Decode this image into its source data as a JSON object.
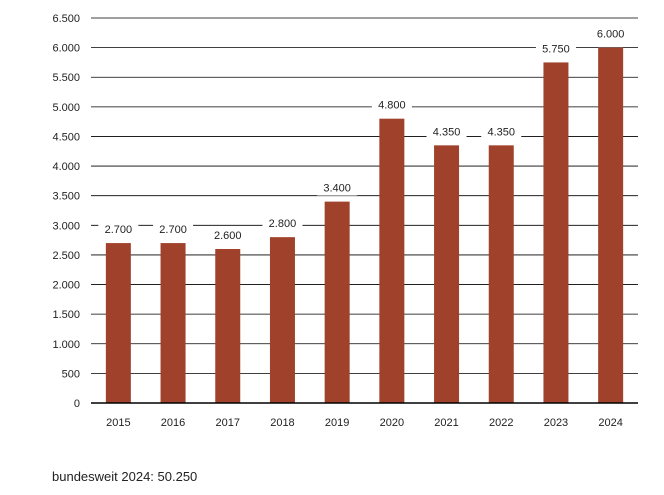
{
  "chart_data": {
    "type": "bar",
    "categories": [
      "2015",
      "2016",
      "2017",
      "2018",
      "2019",
      "2020",
      "2021",
      "2022",
      "2023",
      "2024"
    ],
    "values": [
      2700,
      2700,
      2600,
      2800,
      3400,
      4800,
      4350,
      4350,
      5750,
      6000
    ],
    "data_labels": [
      "2.700",
      "2.700",
      "2.600",
      "2.800",
      "3.400",
      "4.800",
      "4.350",
      "4.350",
      "5.750",
      "6.000"
    ],
    "y_ticks": [
      0,
      500,
      1000,
      1500,
      2000,
      2500,
      3000,
      3500,
      4000,
      4500,
      5000,
      5500,
      6000,
      6500
    ],
    "y_tick_labels": [
      "0",
      "500",
      "1.000",
      "1.500",
      "2.000",
      "2.500",
      "3.000",
      "3.500",
      "4.000",
      "4.500",
      "5.000",
      "5.500",
      "6.000",
      "6.500"
    ],
    "ylim": [
      0,
      6500
    ],
    "grid": true,
    "legend": "none",
    "colors": {
      "bar": "#a0412b",
      "grid": "#000000",
      "text": "#222222"
    }
  },
  "footnote": "bundesweit 2024: 50.250"
}
